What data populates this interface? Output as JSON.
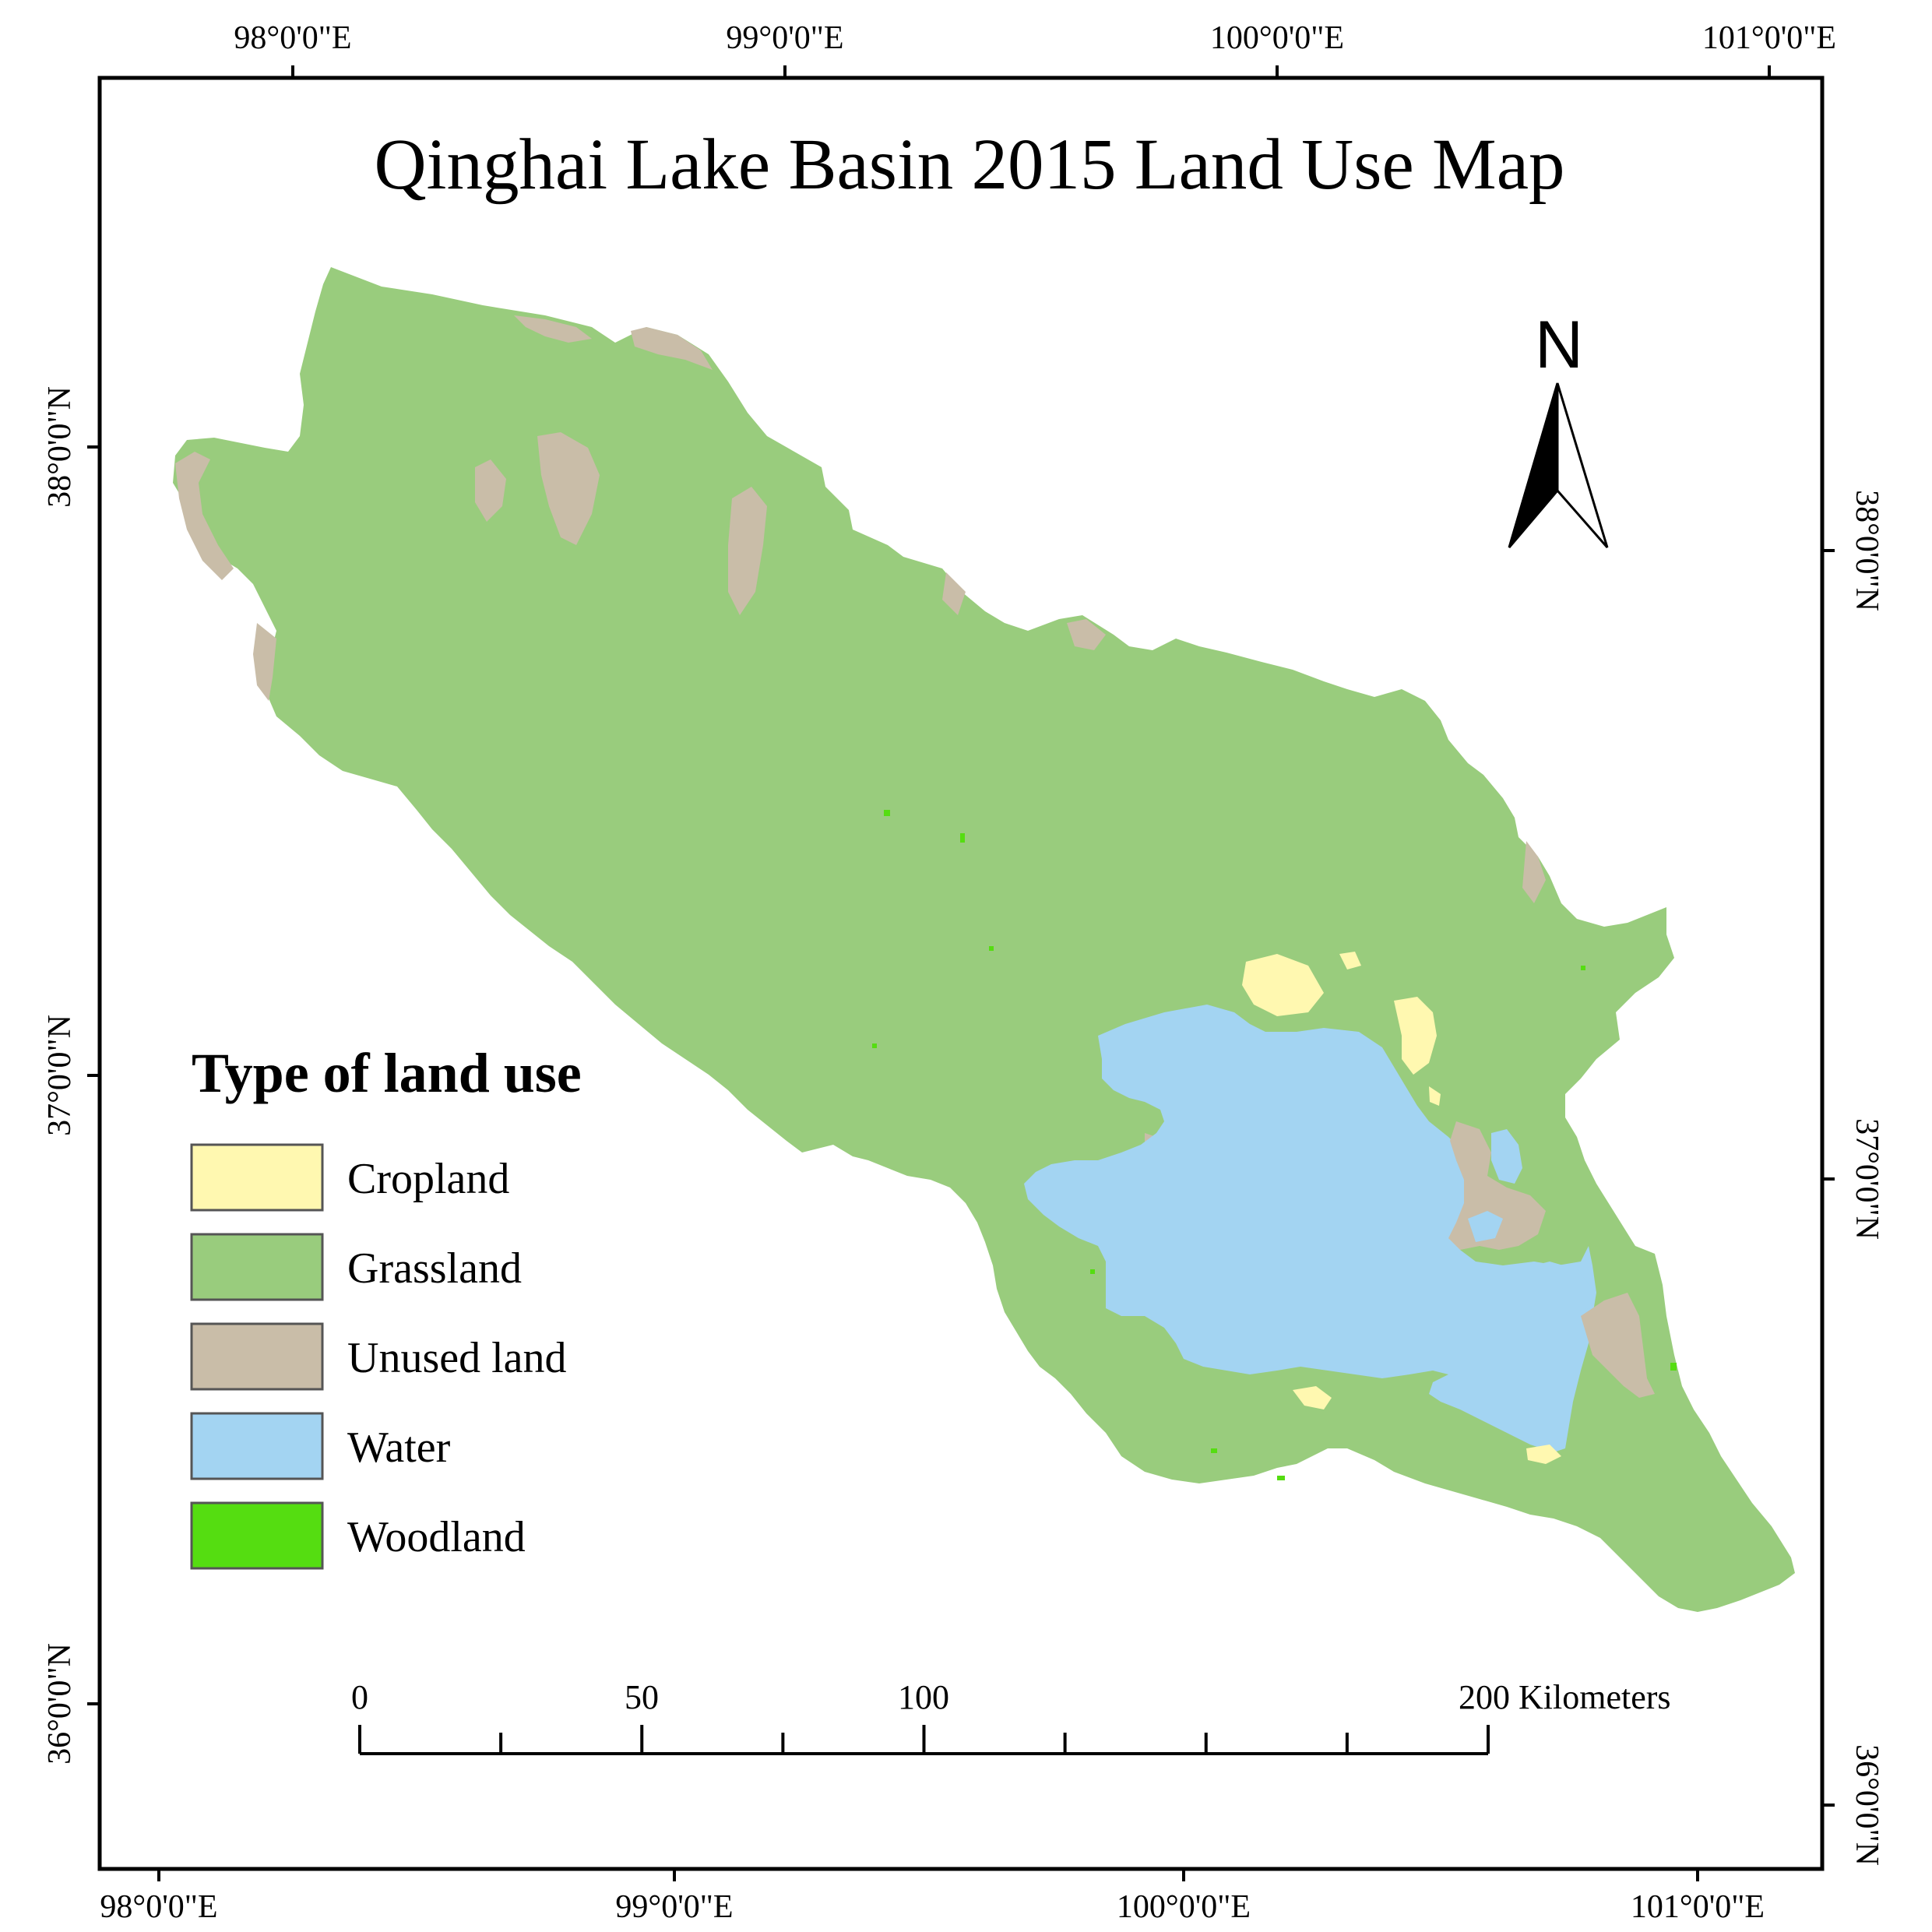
{
  "title": "Qinghai Lake Basin 2015 Land Use Map",
  "north_arrow": {
    "label": "N"
  },
  "graticule": {
    "top_labels": [
      "98°0'0\"E",
      "99°0'0\"E",
      "100°0'0\"E",
      "101°0'0\"E"
    ],
    "bottom_labels": [
      "98°0'0\"E",
      "99°0'0\"E",
      "100°0'0\"E",
      "101°0'0\"E"
    ],
    "left_labels": [
      "38°0'0\"N",
      "37°0'0\"N",
      "36°0'0\"N"
    ],
    "right_labels": [
      "38°0'0\"N",
      "37°0'0\"N",
      "36°0'0\"N"
    ]
  },
  "legend": {
    "title": "Type of land use",
    "items": [
      {
        "label": "Cropland",
        "color": "#fff8b0"
      },
      {
        "label": "Grassland",
        "color": "#99cc7d"
      },
      {
        "label": "Unused land",
        "color": "#c9bda8"
      },
      {
        "label": "Water",
        "color": "#a3d4f2"
      },
      {
        "label": "Woodland",
        "color": "#55dd11"
      }
    ]
  },
  "scale_bar": {
    "labels": [
      "0",
      "50",
      "100",
      "200 Kilometers"
    ],
    "max_km": 200
  },
  "colors": {
    "grassland": "#99cc7d",
    "unused": "#c9bda8",
    "water": "#a3d4f2",
    "cropland": "#fff8b0",
    "woodland": "#55dd11",
    "frame": "#000000"
  }
}
